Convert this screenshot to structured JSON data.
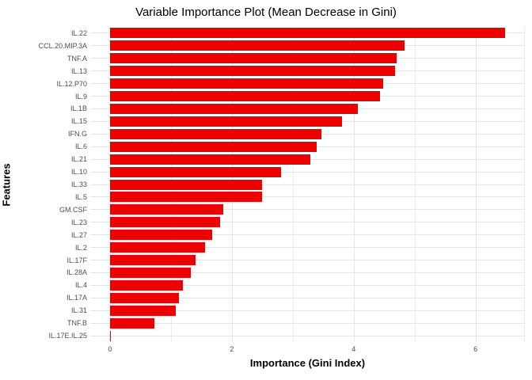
{
  "chart_data": {
    "type": "bar",
    "orientation": "horizontal",
    "title": "Variable Importance Plot (Mean Decrease in Gini)",
    "xlabel": "Importance (Gini Index)",
    "ylabel": "Features",
    "categories": [
      "IL.22",
      "CCL.20.MIP.3A",
      "TNF.A",
      "IL.13",
      "IL.12.P70",
      "IL.9",
      "IL.1B",
      "IL.15",
      "IFN.G",
      "IL.6",
      "IL.21",
      "IL.10",
      "IL.33",
      "IL.5",
      "GM.CSF",
      "IL.23",
      "IL.27",
      "IL.2",
      "IL.17F",
      "IL.28A",
      "IL.4",
      "IL.17A",
      "IL.31",
      "TNF.B",
      "IL.17E.IL.25"
    ],
    "values": [
      6.49,
      4.83,
      4.7,
      4.68,
      4.49,
      4.43,
      4.07,
      3.81,
      3.47,
      3.39,
      3.29,
      2.81,
      2.5,
      2.49,
      1.86,
      1.8,
      1.68,
      1.56,
      1.41,
      1.33,
      1.19,
      1.13,
      1.08,
      0.73,
      0.01
    ],
    "xlim": [
      -0.325,
      6.81
    ],
    "x_major_ticks": [
      0,
      2,
      4,
      6
    ],
    "x_minor_ticks": [
      1,
      3,
      5
    ],
    "grid": true,
    "legend": false,
    "bar_color": "#ed0000",
    "major_grid_color": "#e4e4e4",
    "minor_grid_color": "#ececec",
    "row_grid_color": "#e5e5e5",
    "axis_text_color": "#4d4d4d",
    "title_color": "#000000"
  }
}
